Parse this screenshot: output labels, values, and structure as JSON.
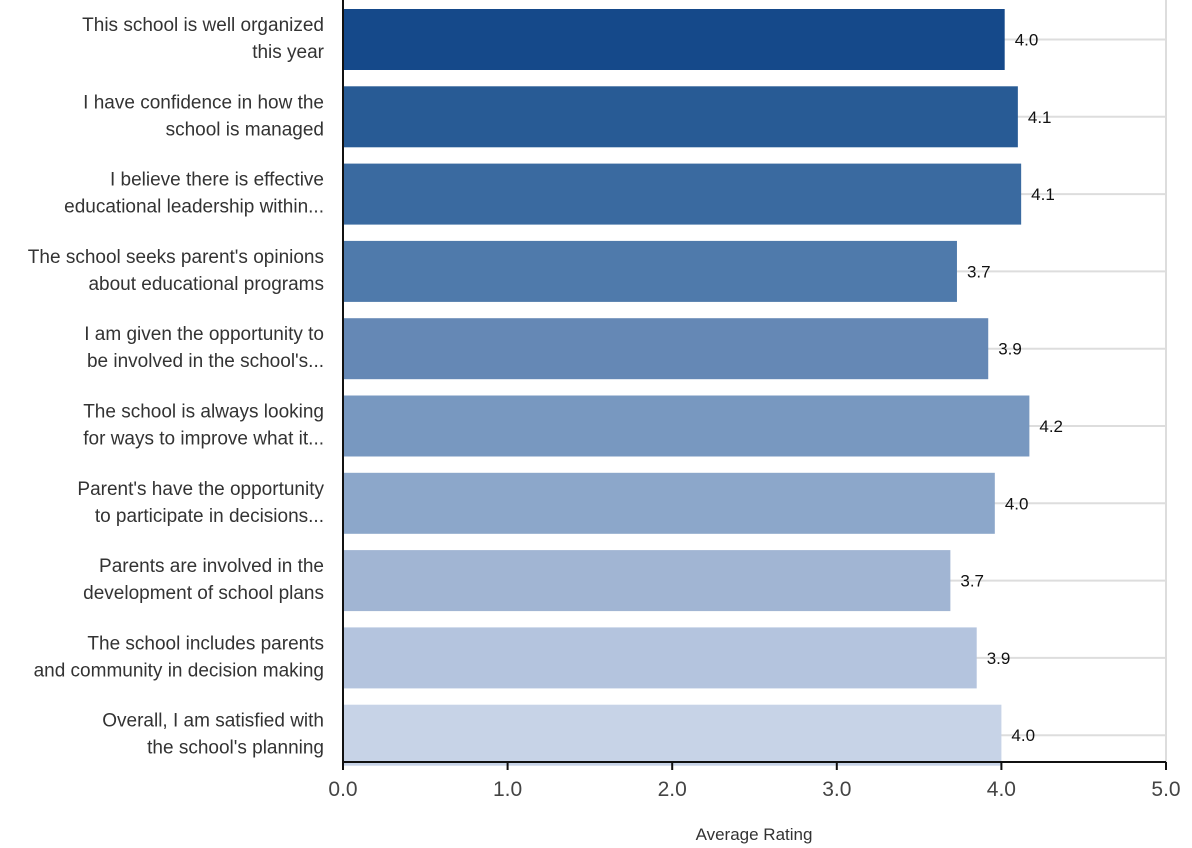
{
  "chart_data": {
    "type": "bar",
    "orientation": "horizontal",
    "categories": [
      [
        "This school is well organized",
        "this year"
      ],
      [
        "I have confidence in how the",
        "school is managed"
      ],
      [
        "I believe there is effective",
        "educational leadership within..."
      ],
      [
        "The school seeks parent's opinions",
        "about educational programs"
      ],
      [
        "I am given the opportunity to",
        "be involved in the school's..."
      ],
      [
        "The school is always looking",
        "for ways to improve what it..."
      ],
      [
        "Parent's have the opportunity",
        "to participate in decisions..."
      ],
      [
        "Parents are involved in the",
        "development of school plans"
      ],
      [
        "The school includes parents",
        "and community in decision making"
      ],
      [
        "Overall, I am satisfied with",
        "the school's planning"
      ]
    ],
    "values": [
      4.02,
      4.1,
      4.12,
      3.73,
      3.92,
      4.17,
      3.96,
      3.69,
      3.85,
      4.0
    ],
    "data_labels": [
      "4.0",
      "4.1",
      "4.1",
      "3.7",
      "3.9",
      "4.2",
      "4.0",
      "3.7",
      "3.9",
      "4.0"
    ],
    "xlabel": "Average Rating",
    "xlim": [
      0,
      5
    ],
    "xticks": [
      0,
      1,
      2,
      3,
      4,
      5
    ],
    "xtick_labels": [
      "0.0",
      "1.0",
      "2.0",
      "3.0",
      "4.0",
      "5.0"
    ],
    "grid": true,
    "colors": [
      "#15498a",
      "#285b95",
      "#3a6aa0",
      "#4f7aab",
      "#6588b5",
      "#7898c0",
      "#8ca7ca",
      "#a1b5d3",
      "#b4c4de",
      "#c7d3e7"
    ]
  }
}
